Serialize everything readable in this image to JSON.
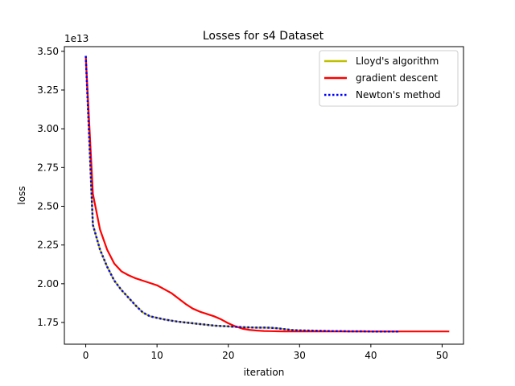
{
  "chart_data": {
    "type": "line",
    "title": "Losses for s4 Dataset",
    "xlabel": "iteration",
    "ylabel": "loss",
    "y_offset_label": "1e13",
    "y_scale_factor": 10000000000000.0,
    "xlim": [
      -3,
      53
    ],
    "ylim": [
      1.61,
      3.53
    ],
    "x_ticks": [
      0,
      10,
      20,
      30,
      40,
      50
    ],
    "y_ticks": [
      1.75,
      2.0,
      2.25,
      2.5,
      2.75,
      3.0,
      3.25,
      3.5
    ],
    "y_tick_labels": [
      "1.75",
      "2.00",
      "2.25",
      "2.50",
      "2.75",
      "3.00",
      "3.25",
      "3.50"
    ],
    "grid": false,
    "legend_position": "top-right",
    "series": [
      {
        "name": "Lloyd's algorithm",
        "color": "#bfbf00",
        "style": "solid",
        "x": [
          0,
          1,
          2,
          3,
          4,
          5,
          6,
          7,
          8,
          9,
          10,
          11,
          12,
          13,
          14,
          15,
          16,
          17,
          18,
          19,
          20,
          21,
          22,
          23,
          24,
          25,
          26,
          27,
          28,
          29,
          30,
          31,
          32,
          33,
          34,
          35,
          36,
          37,
          38,
          39,
          40,
          41,
          42,
          43,
          44
        ],
        "y": [
          3.47,
          2.38,
          2.22,
          2.11,
          2.02,
          1.96,
          1.91,
          1.86,
          1.815,
          1.79,
          1.78,
          1.77,
          1.762,
          1.755,
          1.75,
          1.745,
          1.74,
          1.735,
          1.73,
          1.727,
          1.725,
          1.722,
          1.72,
          1.718,
          1.717,
          1.717,
          1.716,
          1.712,
          1.706,
          1.701,
          1.699,
          1.698,
          1.697,
          1.696,
          1.695,
          1.694,
          1.694,
          1.693,
          1.693,
          1.693,
          1.692,
          1.692,
          1.692,
          1.692,
          1.692
        ]
      },
      {
        "name": "gradient descent",
        "color": "#ff0000",
        "style": "solid",
        "x": [
          0,
          1,
          2,
          3,
          4,
          5,
          6,
          7,
          8,
          9,
          10,
          11,
          12,
          13,
          14,
          15,
          16,
          17,
          18,
          19,
          20,
          21,
          22,
          23,
          24,
          25,
          26,
          27,
          28,
          29,
          30,
          31,
          32,
          33,
          34,
          35,
          36,
          37,
          38,
          39,
          40,
          41,
          42,
          43,
          44,
          45,
          46,
          47,
          48,
          49,
          50,
          51
        ],
        "y": [
          3.47,
          2.58,
          2.35,
          2.22,
          2.13,
          2.08,
          2.055,
          2.035,
          2.02,
          2.005,
          1.99,
          1.965,
          1.94,
          1.905,
          1.87,
          1.84,
          1.82,
          1.805,
          1.79,
          1.77,
          1.745,
          1.725,
          1.71,
          1.702,
          1.698,
          1.695,
          1.694,
          1.693,
          1.692,
          1.692,
          1.692,
          1.692,
          1.692,
          1.692,
          1.692,
          1.692,
          1.692,
          1.692,
          1.692,
          1.692,
          1.692,
          1.692,
          1.692,
          1.692,
          1.692,
          1.692,
          1.692,
          1.692,
          1.692,
          1.692,
          1.692,
          1.692
        ]
      },
      {
        "name": "Newton's method",
        "color": "#0000ff",
        "style": "dotted",
        "x": [
          0,
          1,
          2,
          3,
          4,
          5,
          6,
          7,
          8,
          9,
          10,
          11,
          12,
          13,
          14,
          15,
          16,
          17,
          18,
          19,
          20,
          21,
          22,
          23,
          24,
          25,
          26,
          27,
          28,
          29,
          30,
          31,
          32,
          33,
          34,
          35,
          36,
          37,
          38,
          39,
          40,
          41,
          42,
          43,
          44
        ],
        "y": [
          3.47,
          2.38,
          2.22,
          2.11,
          2.02,
          1.96,
          1.91,
          1.86,
          1.815,
          1.79,
          1.78,
          1.77,
          1.762,
          1.755,
          1.75,
          1.745,
          1.74,
          1.735,
          1.73,
          1.727,
          1.725,
          1.722,
          1.72,
          1.718,
          1.717,
          1.717,
          1.716,
          1.712,
          1.706,
          1.701,
          1.699,
          1.698,
          1.697,
          1.696,
          1.695,
          1.694,
          1.694,
          1.693,
          1.693,
          1.693,
          1.692,
          1.692,
          1.692,
          1.692,
          1.692
        ]
      }
    ]
  }
}
